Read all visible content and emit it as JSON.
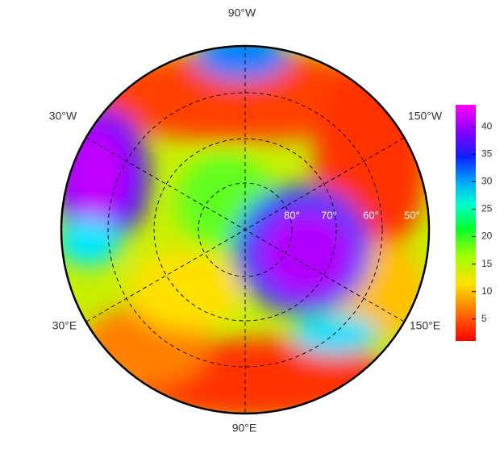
{
  "map": {
    "longitude_labels": [
      "90°W",
      "30°W",
      "150°W",
      "30°E",
      "150°E",
      "90°E"
    ],
    "latitude_labels": [
      "80°",
      "70°",
      "60°",
      "50°"
    ]
  },
  "colorbar": {
    "lim": [
      1,
      44
    ],
    "ticks": [
      5,
      10,
      15,
      20,
      25,
      30,
      35,
      40
    ]
  }
}
